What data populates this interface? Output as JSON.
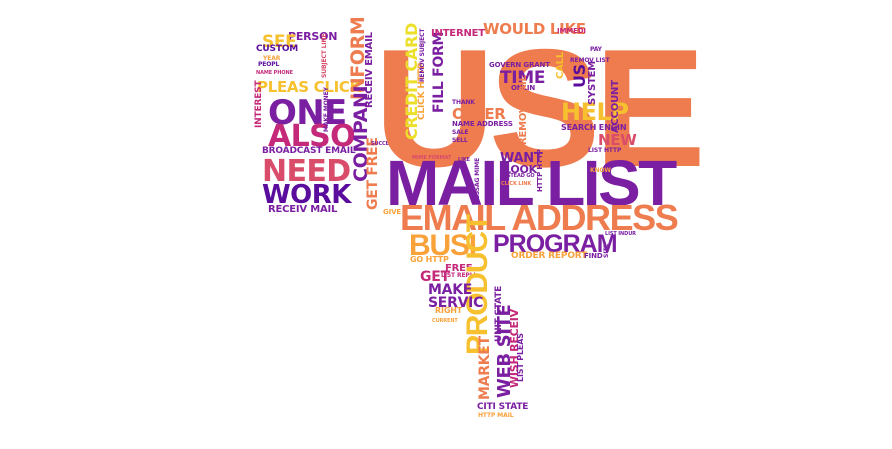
{
  "colors": {
    "orange": "#ee7c4e",
    "purple": "#7b1fa2",
    "deep": "#5a0c9c",
    "magenta": "#c4297a",
    "pink": "#d94c6a",
    "yellow": "#f6c02e",
    "amber": "#f9a23a",
    "lime": "#ecdf29"
  },
  "words": [
    {
      "text": "USE",
      "c": "orange",
      "s": 168
    },
    {
      "text": "MAIL LIST",
      "c": "purple",
      "s": 64
    },
    {
      "text": "EMAIL ADDRESS",
      "c": "orange",
      "s": 36
    },
    {
      "text": "PROGRAM",
      "c": "purple",
      "s": 25
    },
    {
      "text": "BUSI",
      "c": "amber",
      "s": 30
    },
    {
      "text": "PRODUCT",
      "c": "yellow",
      "s": 30
    },
    {
      "text": "ONE",
      "c": "purple",
      "s": 34
    },
    {
      "text": "ALSO",
      "c": "magenta",
      "s": 30
    },
    {
      "text": "NEED",
      "c": "pink",
      "s": 30
    },
    {
      "text": "WORK",
      "c": "deep",
      "s": 26
    },
    {
      "text": "PLEAS CLICK",
      "c": "yellow",
      "s": 15
    },
    {
      "text": "BROADCAST EMAIL",
      "c": "purple",
      "s": 9
    },
    {
      "text": "RECEIV MAIL",
      "c": "purple",
      "s": 10
    },
    {
      "text": "PERSON",
      "c": "purple",
      "s": 11
    },
    {
      "text": "SEE",
      "c": "yellow",
      "s": 17
    },
    {
      "text": "CUSTOM",
      "c": "deep",
      "s": 9
    },
    {
      "text": "YEAR",
      "c": "amber",
      "s": 6
    },
    {
      "text": "PEOPL",
      "c": "deep",
      "s": 6
    },
    {
      "text": "NAME PHONE",
      "c": "magenta",
      "s": 5
    },
    {
      "text": "INTEREST",
      "c": "magenta",
      "s": 9
    },
    {
      "text": "MAKE MONEY",
      "c": "purple",
      "s": 6
    },
    {
      "text": "SUBJECT LINE",
      "c": "pink",
      "s": 6
    },
    {
      "text": "INFORM",
      "c": "orange",
      "s": 19
    },
    {
      "text": "RECEIV EMAIL",
      "c": "purple",
      "s": 10
    },
    {
      "text": "COMPANI",
      "c": "purple",
      "s": 19
    },
    {
      "text": "GET FREE",
      "c": "orange",
      "s": 14
    },
    {
      "text": "CREDIT CARD",
      "c": "lime",
      "s": 16
    },
    {
      "text": "CLICK HTTP",
      "c": "amber",
      "s": 9
    },
    {
      "text": "FILL FORM",
      "c": "purple",
      "s": 14
    },
    {
      "text": "REMOV SUBJECT",
      "c": "purple",
      "s": 6
    },
    {
      "text": "INTERNET",
      "c": "magenta",
      "s": 10
    },
    {
      "text": "WOULD LIKE",
      "c": "orange",
      "s": 15
    },
    {
      "text": "IMMEDI",
      "c": "magenta",
      "s": 7
    },
    {
      "text": "GOVERN GRANT",
      "c": "purple",
      "s": 7
    },
    {
      "text": "TIME",
      "c": "purple",
      "s": 17
    },
    {
      "text": "ONLIN",
      "c": "purple",
      "s": 7
    },
    {
      "text": "THANK",
      "c": "purple",
      "s": 6
    },
    {
      "text": "OFFER",
      "c": "orange",
      "s": 15
    },
    {
      "text": "NAME ADDRESS",
      "c": "purple",
      "s": 7
    },
    {
      "text": "SALE",
      "c": "purple",
      "s": 6
    },
    {
      "text": "SELL",
      "c": "purple",
      "s": 6
    },
    {
      "text": "REMOV MAIL",
      "c": "orange",
      "s": 10
    },
    {
      "text": "HELP",
      "c": "yellow",
      "s": 24
    },
    {
      "text": "SEARCH ENGIN",
      "c": "purple",
      "s": 8
    },
    {
      "text": "US",
      "c": "deep",
      "s": 16
    },
    {
      "text": "CALL",
      "c": "yellow",
      "s": 10
    },
    {
      "text": "SYSTEM",
      "c": "purple",
      "s": 10
    },
    {
      "text": "REMOV LIST",
      "c": "purple",
      "s": 6
    },
    {
      "text": "ACCOUNT",
      "c": "purple",
      "s": 10
    },
    {
      "text": "PAY",
      "c": "purple",
      "s": 6
    },
    {
      "text": "NEW",
      "c": "pink",
      "s": 15
    },
    {
      "text": "LIST HTTP",
      "c": "purple",
      "s": 6
    },
    {
      "text": "WANT",
      "c": "purple",
      "s": 13
    },
    {
      "text": "LOOK",
      "c": "purple",
      "s": 11
    },
    {
      "text": "INSTEAD GO",
      "c": "purple",
      "s": 5
    },
    {
      "text": "CLICK LINK",
      "c": "orange",
      "s": 5
    },
    {
      "text": "KNOW",
      "c": "amber",
      "s": 6
    },
    {
      "text": "HTTP HTTP",
      "c": "purple",
      "s": 7
    },
    {
      "text": "MESSAG MIME",
      "c": "purple",
      "s": 6
    },
    {
      "text": "MIME FORMAT",
      "c": "pink",
      "s": 5
    },
    {
      "text": "SUCCESS",
      "c": "purple",
      "s": 5
    },
    {
      "text": "LIKE",
      "c": "purple",
      "s": 5
    },
    {
      "text": "GIVE",
      "c": "amber",
      "s": 7
    },
    {
      "text": "GO HTTP",
      "c": "amber",
      "s": 8
    },
    {
      "text": "ORDER REPORT",
      "c": "amber",
      "s": 9
    },
    {
      "text": "FIND",
      "c": "purple",
      "s": 7
    },
    {
      "text": "SITE",
      "c": "purple",
      "s": 6
    },
    {
      "text": "LIST INDUR",
      "c": "purple",
      "s": 5
    },
    {
      "text": "FREE",
      "c": "magenta",
      "s": 10
    },
    {
      "text": "LIST REPLI",
      "c": "magenta",
      "s": 6
    },
    {
      "text": "GET",
      "c": "magenta",
      "s": 14
    },
    {
      "text": "MAKE",
      "c": "purple",
      "s": 14
    },
    {
      "text": "SERVIC",
      "c": "purple",
      "s": 14
    },
    {
      "text": "RIGHT",
      "c": "amber",
      "s": 8
    },
    {
      "text": "CURRENT",
      "c": "amber",
      "s": 5
    },
    {
      "text": "UNIT STATE",
      "c": "purple",
      "s": 9
    },
    {
      "text": "MARKET",
      "c": "orange",
      "s": 14
    },
    {
      "text": "WEB SITE",
      "c": "purple",
      "s": 18
    },
    {
      "text": "WISH RECEIV",
      "c": "magenta",
      "s": 11
    },
    {
      "text": "LIST PLEAS",
      "c": "purple",
      "s": 8
    },
    {
      "text": "CITI STATE",
      "c": "purple",
      "s": 9
    },
    {
      "text": "HTTP MAIL",
      "c": "amber",
      "s": 6
    }
  ]
}
